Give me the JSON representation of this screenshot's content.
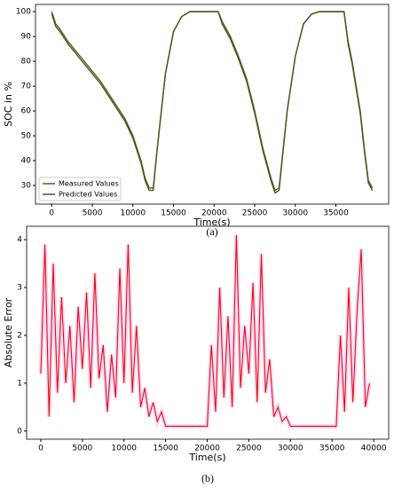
{
  "chart_data": [
    {
      "type": "line",
      "panel_label": "(a)",
      "x_label": "Time(s)",
      "y_label": "SOC in %",
      "x": [
        0,
        500,
        1000,
        2000,
        3000,
        4000,
        5000,
        6000,
        7000,
        8000,
        9000,
        10000,
        11000,
        11500,
        12000,
        12500,
        13000,
        14000,
        15000,
        16000,
        17000,
        20500,
        21000,
        22000,
        23000,
        24000,
        25000,
        26000,
        27000,
        27500,
        28000,
        29000,
        30000,
        31000,
        32000,
        33000,
        36000,
        36500,
        37000,
        38000,
        38500,
        39000,
        39500
      ],
      "series": [
        {
          "name": "Measured Values",
          "color": "#3d6b1e",
          "values": [
            100,
            95,
            93,
            88,
            84,
            80,
            76,
            72,
            67,
            62,
            57,
            50,
            40,
            33,
            29,
            29,
            45,
            75,
            92,
            98,
            100,
            100,
            96,
            90,
            82,
            73,
            60,
            45,
            33,
            28,
            29,
            60,
            82,
            95,
            99,
            100,
            100,
            88,
            80,
            60,
            45,
            32,
            29
          ]
        },
        {
          "name": "Predicted Values",
          "color": "#5e4d1e",
          "values": [
            99,
            94,
            92,
            87,
            83,
            79,
            75,
            71,
            66,
            61,
            56,
            49,
            39,
            32,
            28,
            28,
            45,
            75,
            92,
            98,
            100,
            100,
            95,
            89,
            81,
            72,
            59,
            44,
            32,
            27,
            28,
            60,
            82,
            95,
            99,
            100,
            100,
            87,
            79,
            59,
            44,
            31,
            28
          ]
        }
      ],
      "xlim": [
        -2000,
        41500
      ],
      "xticks": [
        0,
        5000,
        10000,
        15000,
        20000,
        25000,
        30000,
        35000
      ],
      "ylim": [
        22.5,
        102.9
      ],
      "yticks": [
        30,
        40,
        50,
        60,
        70,
        80,
        90,
        100
      ],
      "legend": "lower left"
    },
    {
      "type": "line",
      "panel_label": "(b)",
      "x_label": "Time(s)",
      "y_label": "Absolute Error",
      "x": [
        0,
        500,
        1000,
        1500,
        2000,
        2500,
        3000,
        3500,
        4000,
        4500,
        5000,
        5500,
        6000,
        6500,
        7000,
        7500,
        8000,
        8500,
        9000,
        9500,
        10000,
        10500,
        11000,
        11500,
        12000,
        12500,
        13000,
        13500,
        14000,
        14500,
        15000,
        15500,
        16000,
        16500,
        17000,
        17500,
        18000,
        18500,
        19000,
        19500,
        20000,
        20500,
        21000,
        21500,
        22000,
        22500,
        23000,
        23500,
        24000,
        24500,
        25000,
        25500,
        26000,
        26500,
        27000,
        27500,
        28000,
        28500,
        29000,
        29500,
        30000,
        30500,
        31000,
        31500,
        32000,
        32500,
        33000,
        33500,
        34000,
        34500,
        35000,
        35500,
        36000,
        36500,
        37000,
        37500,
        38000,
        38500,
        39000,
        39500
      ],
      "series": [
        {
          "color": "#e01010",
          "values": [
            1.2,
            3.9,
            0.3,
            3.5,
            0.8,
            2.8,
            1.0,
            2.2,
            0.6,
            2.6,
            1.3,
            2.9,
            0.9,
            3.3,
            1.1,
            1.8,
            0.4,
            1.6,
            0.7,
            3.4,
            1.0,
            3.9,
            0.8,
            2.2,
            0.5,
            0.9,
            0.3,
            0.6,
            0.2,
            0.4,
            0.1,
            0.1,
            0.1,
            0.1,
            0.1,
            0.1,
            0.1,
            0.1,
            0.1,
            0.1,
            0.1,
            1.8,
            0.4,
            3.0,
            0.7,
            2.4,
            0.5,
            4.1,
            0.9,
            2.2,
            1.2,
            3.1,
            0.6,
            3.7,
            0.8,
            1.5,
            0.3,
            0.5,
            0.2,
            0.3,
            0.1,
            0.1,
            0.1,
            0.1,
            0.1,
            0.1,
            0.1,
            0.1,
            0.1,
            0.1,
            0.1,
            0.1,
            2.0,
            0.4,
            3.0,
            0.6,
            2.5,
            3.8,
            0.5,
            1.0
          ]
        }
      ],
      "xlim": [
        -1700,
        41800
      ],
      "xticks": [
        0,
        5000,
        10000,
        15000,
        20000,
        25000,
        30000,
        35000,
        40000
      ],
      "ylim": [
        -0.17,
        4.28
      ],
      "yticks": [
        0,
        1,
        2,
        3,
        4
      ]
    }
  ]
}
